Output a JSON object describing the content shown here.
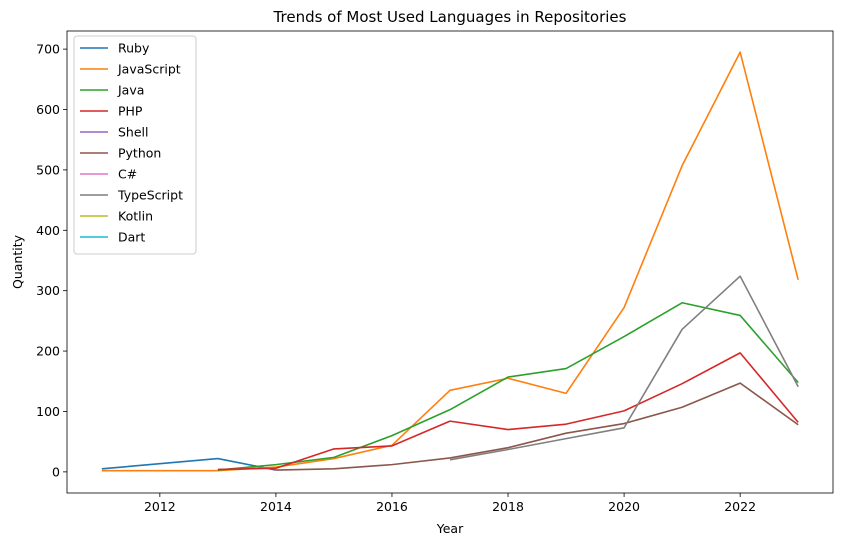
{
  "chart_data": {
    "type": "line",
    "title": "Trends of Most Used Languages in Repositories",
    "xlabel": "Year",
    "ylabel": "Quantity",
    "xlim": [
      2010.4,
      2023.6
    ],
    "ylim": [
      -35,
      730
    ],
    "xticks": [
      2012,
      2014,
      2016,
      2018,
      2020,
      2022
    ],
    "yticks": [
      0,
      100,
      200,
      300,
      400,
      500,
      600,
      700
    ],
    "grid": false,
    "legend_position": "top-left",
    "series": [
      {
        "name": "Ruby",
        "color": "#1f77b4",
        "x": [
          2011,
          2013,
          2014
        ],
        "y": [
          5,
          22,
          3
        ]
      },
      {
        "name": "JavaScript",
        "color": "#ff7f0e",
        "x": [
          2011,
          2012,
          2013,
          2014,
          2015,
          2016,
          2017,
          2018,
          2019,
          2020,
          2021,
          2022,
          2023
        ],
        "y": [
          2,
          2,
          2,
          8,
          22,
          44,
          135,
          155,
          130,
          272,
          507,
          695,
          318
        ]
      },
      {
        "name": "Java",
        "color": "#2ca02c",
        "x": [
          2013,
          2014,
          2015,
          2016,
          2017,
          2018,
          2019,
          2020,
          2021,
          2022,
          2023
        ],
        "y": [
          3,
          12,
          24,
          60,
          103,
          157,
          171,
          224,
          280,
          259,
          148
        ]
      },
      {
        "name": "PHP",
        "color": "#d62728",
        "x": [
          2013,
          2014,
          2015,
          2016,
          2017,
          2018,
          2019,
          2020,
          2021,
          2022,
          2023
        ],
        "y": [
          4,
          6,
          38,
          43,
          84,
          70,
          79,
          101,
          146,
          197,
          82
        ]
      },
      {
        "name": "Shell",
        "color": "#9467bd",
        "x": [],
        "y": []
      },
      {
        "name": "Python",
        "color": "#8c564b",
        "x": [
          2014,
          2015,
          2016,
          2017,
          2018,
          2019,
          2020,
          2021,
          2022,
          2023
        ],
        "y": [
          3,
          5,
          12,
          23,
          40,
          64,
          80,
          107,
          147,
          78
        ]
      },
      {
        "name": "C#",
        "color": "#e377c2",
        "x": [],
        "y": []
      },
      {
        "name": "TypeScript",
        "color": "#7f7f7f",
        "x": [
          2017,
          2018,
          2019,
          2020,
          2021,
          2022,
          2023
        ],
        "y": [
          20,
          37,
          55,
          73,
          236,
          324,
          141
        ]
      },
      {
        "name": "Kotlin",
        "color": "#bcbd22",
        "x": [],
        "y": []
      },
      {
        "name": "Dart",
        "color": "#17becf",
        "x": [],
        "y": []
      }
    ]
  }
}
